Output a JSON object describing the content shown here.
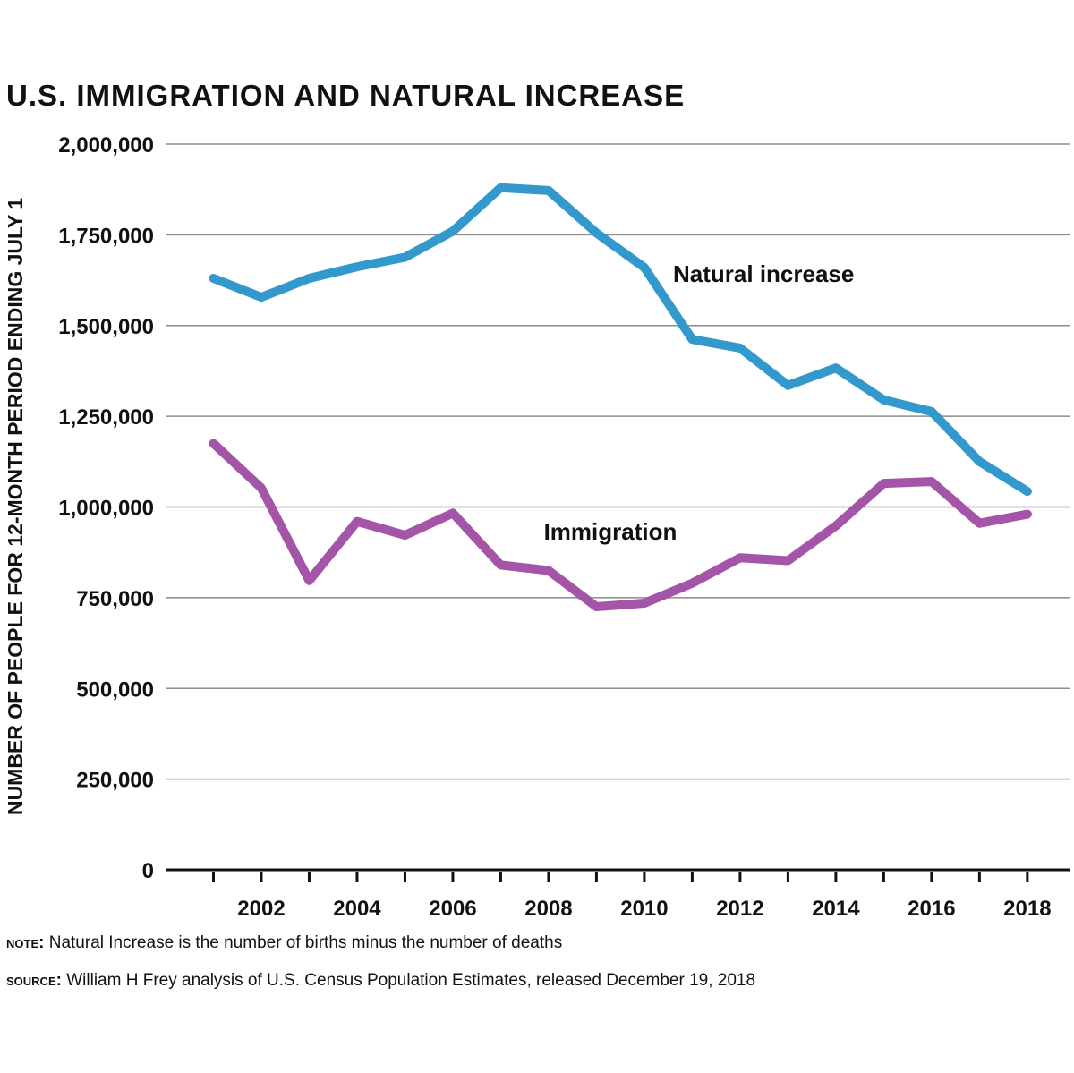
{
  "chart_data": {
    "type": "line",
    "title": "U.S. IMMIGRATION AND NATURAL INCREASE",
    "xlabel": "",
    "ylabel": "NUMBER OF PEOPLE FOR 12-MONTH PERIOD ENDING JULY 1",
    "x": [
      2001,
      2002,
      2003,
      2004,
      2005,
      2006,
      2007,
      2008,
      2009,
      2010,
      2011,
      2012,
      2013,
      2014,
      2015,
      2016,
      2017,
      2018
    ],
    "xticks": [
      {
        "value": 2002,
        "label": "2002"
      },
      {
        "value": 2004,
        "label": "2004"
      },
      {
        "value": 2006,
        "label": "2006"
      },
      {
        "value": 2008,
        "label": "2008"
      },
      {
        "value": 2010,
        "label": "2010"
      },
      {
        "value": 2012,
        "label": "2012"
      },
      {
        "value": 2014,
        "label": "2014"
      },
      {
        "value": 2016,
        "label": "2016"
      },
      {
        "value": 2018,
        "label": "2018"
      }
    ],
    "yticks": [
      {
        "value": 0,
        "label": "0"
      },
      {
        "value": 250000,
        "label": "250,000"
      },
      {
        "value": 500000,
        "label": "500,000"
      },
      {
        "value": 750000,
        "label": "750,000"
      },
      {
        "value": 1000000,
        "label": "1,000,000"
      },
      {
        "value": 1250000,
        "label": "1,250,000"
      },
      {
        "value": 1500000,
        "label": "1,500,000"
      },
      {
        "value": 1750000,
        "label": "1,750,000"
      },
      {
        "value": 2000000,
        "label": "2,000,000"
      }
    ],
    "ylim": [
      0,
      2000000
    ],
    "xlim": [
      2000.0,
      2018.9
    ],
    "grid": true,
    "series": [
      {
        "name": "Natural increase",
        "color": "#3399cc",
        "label_anchor": {
          "x": 2010.6,
          "y": 1620000
        },
        "values": [
          1630000,
          1578000,
          1630000,
          1662000,
          1688000,
          1760000,
          1880000,
          1872000,
          1755000,
          1660000,
          1462000,
          1438000,
          1335000,
          1383000,
          1295000,
          1263000,
          1125000,
          1043000
        ]
      },
      {
        "name": "Immigration",
        "color": "#a455a8",
        "label_anchor": {
          "x": 2007.9,
          "y": 910000
        },
        "values": [
          1175000,
          1052000,
          797000,
          960000,
          922000,
          983000,
          840000,
          825000,
          725000,
          735000,
          790000,
          860000,
          852000,
          948000,
          1065000,
          1070000,
          955000,
          980000
        ]
      }
    ]
  },
  "footnotes": {
    "note_key": "NOTE:",
    "note_text": "Natural Increase is the number of births minus the number of deaths",
    "source_key": "SOURCE:",
    "source_text": "William H Frey analysis of U.S. Census Population Estimates, released December 19, 2018"
  }
}
